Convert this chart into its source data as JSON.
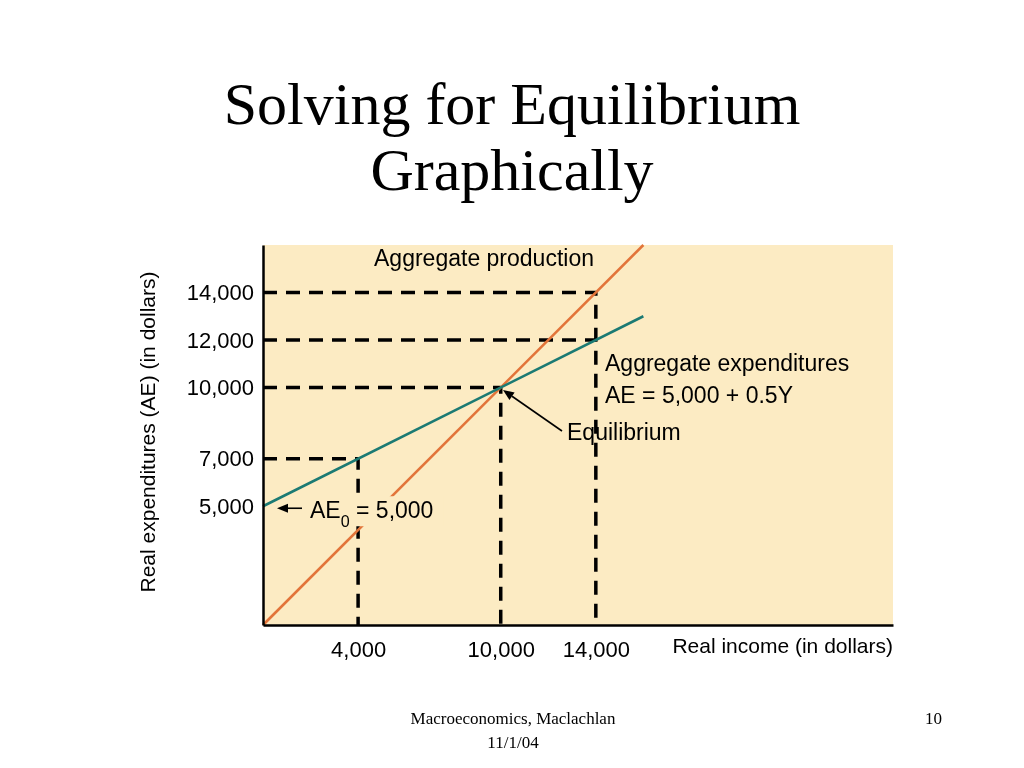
{
  "chart_data": {
    "type": "line",
    "title": "Solving for Equilibrium Graphically",
    "xlabel": "Real income (in dollars)",
    "ylabel": "Real expenditures (AE) (in dollars)",
    "xlim": [
      0,
      26500
    ],
    "ylim": [
      0,
      16000
    ],
    "xticks": [
      {
        "value": 4000,
        "label": "4,000"
      },
      {
        "value": 10000,
        "label": "10,000"
      },
      {
        "value": 14000,
        "label": "14,000"
      }
    ],
    "yticks": [
      {
        "value": 5000,
        "label": "5,000"
      },
      {
        "value": 7000,
        "label": "7,000"
      },
      {
        "value": 10000,
        "label": "10,000"
      },
      {
        "value": 12000,
        "label": "12,000"
      },
      {
        "value": 14000,
        "label": "14,000"
      }
    ],
    "series": [
      {
        "color": "#000000",
        "line_style": "dashed",
        "x": [
          0,
          14000,
          14000
        ],
        "values": [
          14000,
          14000,
          0
        ]
      },
      {
        "color": "#000000",
        "line_style": "dashed",
        "x": [
          0,
          14000
        ],
        "values": [
          12000,
          12000
        ]
      },
      {
        "color": "#000000",
        "line_style": "dashed",
        "x": [
          0,
          10000,
          10000
        ],
        "values": [
          10000,
          10000,
          0
        ]
      },
      {
        "color": "#000000",
        "line_style": "dashed",
        "x": [
          0,
          4000,
          4000
        ],
        "values": [
          7000,
          7000,
          0
        ]
      },
      {
        "name": "Aggregate production",
        "color": "#e2743a",
        "x": [
          0,
          16000
        ],
        "values": [
          0,
          16000
        ]
      },
      {
        "name": "Aggregate expenditures",
        "color": "#1b7a73",
        "x": [
          0,
          16000
        ],
        "values": [
          5000,
          13000
        ]
      }
    ],
    "annotations": [
      "AE = 5,000 + 0.5Y",
      "Equilibrium",
      {
        "text": "AE$_{0}$ = 5,000",
        "x": 0,
        "y": 5000
      },
      "Macroeconomics, Maclachlan",
      "11/1/04",
      "10"
    ]
  }
}
